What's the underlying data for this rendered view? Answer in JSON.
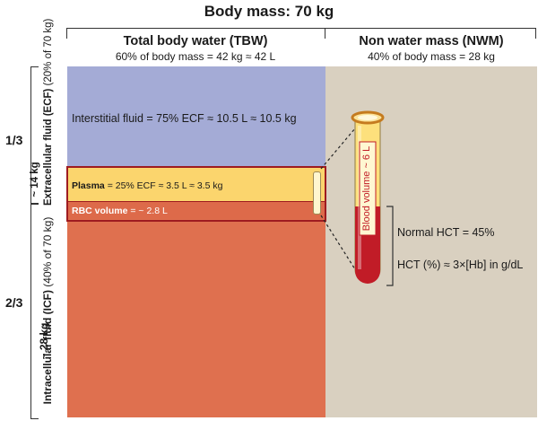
{
  "title": "Body mass: 70 kg",
  "tbw": {
    "heading": "Total body water (TBW)",
    "sub": "60% of body mass = 42 kg ≈ 42 L"
  },
  "nwm": {
    "heading": "Non water mass (NWM)",
    "sub": "40% of body mass = 28 kg"
  },
  "left_axis": {
    "ecf_fraction": "1/3",
    "icf_fraction": "2/3",
    "ecf_label": "Extracellular fluid (ECF)",
    "ecf_detail": "(20% of 70 kg)",
    "ecf_mass": "~ 14 kg",
    "icf_label": "Intracellular fluid (ICF)",
    "icf_detail": "(40% of 70 kg)",
    "icf_mass": "~ 28 kg"
  },
  "compartments": {
    "interstitial": "Interstitial fluid = 75% ECF ≈ 10.5 L ≈ 10.5 kg",
    "plasma_name": "Plasma",
    "plasma_eq": " = 25% ECF ≈  3.5 L ≈ 3.5 kg",
    "rbc_name": "RBC volume",
    "rbc_eq": " = ~ 2.8 L"
  },
  "tube": {
    "label": "Blood volume ~ 6 L",
    "hct_fraction": 0.45
  },
  "hct": {
    "normal": "Normal HCT = 45%",
    "formula": "HCT (%) ≈ 3×[Hb] in g/dL"
  },
  "colors": {
    "interstitial": "#a4abd6",
    "plasma": "#fbd56d",
    "rbc": "#dd6a4a",
    "icf": "#df704f",
    "nwm": "#d9d0c0",
    "highlight_box": "#9e1b20",
    "blood": "#c11c27"
  }
}
